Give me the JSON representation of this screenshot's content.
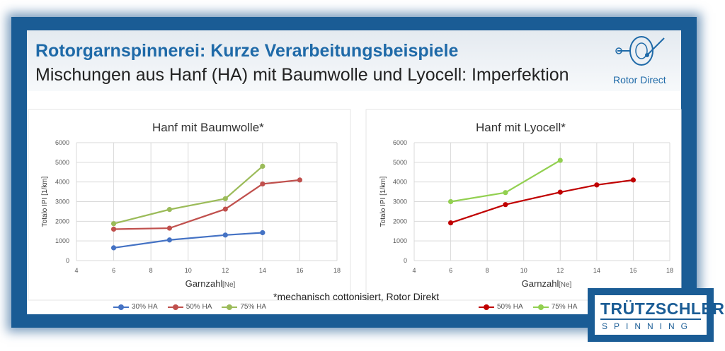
{
  "header": {
    "title": "Rotorgarnspinnerei: Kurze Verarbeitungsbeispiele",
    "subtitle": "Mischungen aus Hanf (HA) mit Baumwolle und Lyocell: Imperfektion",
    "logo_text": "Rotor Direct"
  },
  "footnote": "*mechanisch cottonisiert, Rotor Direkt",
  "brand": {
    "top": "TRÜTZSCHLER",
    "bottom": "SPINNING"
  },
  "chart_data": [
    {
      "type": "line",
      "title": "Hanf mit Baumwolle*",
      "xlabel": "Garnzahl",
      "xunit": "[Ne]",
      "ylabel": "Totalo IPI [1/km]",
      "xlim": [
        4,
        18
      ],
      "ylim": [
        0,
        6000
      ],
      "xticks": [
        "4",
        "6",
        "8",
        "10",
        "12",
        "14",
        "16",
        "18"
      ],
      "yticks": [
        "0",
        "1000",
        "2000",
        "3000",
        "4000",
        "5000",
        "6000"
      ],
      "grid": true,
      "legend": "bottom",
      "series": [
        {
          "name": "30% HA",
          "color": "#4472c4",
          "x": [
            6,
            9,
            12,
            14
          ],
          "y": [
            650,
            1050,
            1300,
            1420
          ]
        },
        {
          "name": "50% HA",
          "color": "#c0504d",
          "x": [
            6,
            9,
            12,
            14,
            16
          ],
          "y": [
            1600,
            1650,
            2620,
            3900,
            4100
          ]
        },
        {
          "name": "75% HA",
          "color": "#9bbb59",
          "x": [
            6,
            9,
            12,
            14
          ],
          "y": [
            1880,
            2600,
            3150,
            4800
          ]
        }
      ]
    },
    {
      "type": "line",
      "title": "Hanf mit Lyocell*",
      "xlabel": "Garnzahl",
      "xunit": "[Ne]",
      "ylabel": "Totalo IPI [1/km]",
      "xlim": [
        4,
        18
      ],
      "ylim": [
        0,
        6000
      ],
      "xticks": [
        "4",
        "6",
        "8",
        "10",
        "12",
        "14",
        "16",
        "18"
      ],
      "yticks": [
        "0",
        "1000",
        "2000",
        "3000",
        "4000",
        "5000",
        "6000"
      ],
      "grid": true,
      "legend": "bottom",
      "series": [
        {
          "name": "50% HA",
          "color": "#c00000",
          "x": [
            6,
            9,
            12,
            14,
            16
          ],
          "y": [
            1920,
            2850,
            3480,
            3850,
            4100
          ]
        },
        {
          "name": "75% HA",
          "color": "#92d050",
          "x": [
            6,
            9,
            12
          ],
          "y": [
            3000,
            3460,
            5100
          ]
        }
      ]
    }
  ]
}
